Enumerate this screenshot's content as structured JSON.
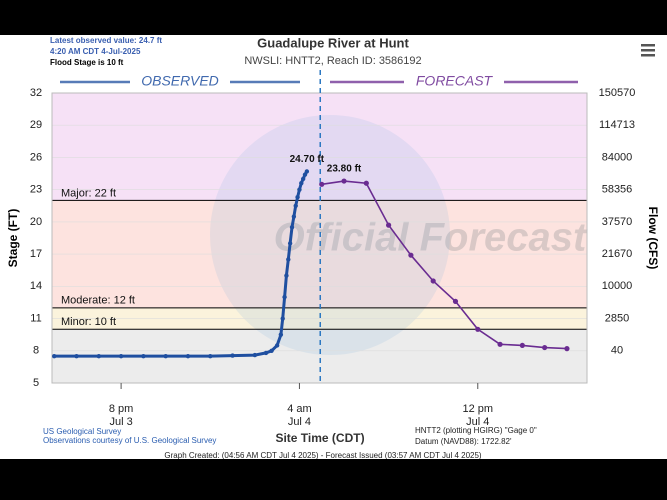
{
  "header": {
    "latest": "Latest observed value: 24.7 ft",
    "latest_time": "4:20 AM CDT 4-Jul-2025",
    "flood_stage": "Flood Stage is 10 ft"
  },
  "chart_data": {
    "type": "line",
    "title": "Guadalupe River at Hunt",
    "subtitle": "NWSLI: HNTT2, Reach ID: 3586192",
    "y_label": "Stage (FT)",
    "y2_label": "Flow (CFS)",
    "x_label": "Site Time (CDT)",
    "watermark": "Official Forecast",
    "xlim": [
      "Jul 3 16:54",
      "Jul 4 16:54"
    ],
    "xticks": [
      {
        "value": "Jul 3 20:00",
        "label": "8 pm",
        "date": "Jul 3"
      },
      {
        "value": "Jul 4 04:00",
        "label": "4 am",
        "date": "Jul 4"
      },
      {
        "value": "Jul 4 12:00",
        "label": "12 pm",
        "date": "Jul 4"
      }
    ],
    "ylim": [
      5,
      32
    ],
    "yticks": [
      5,
      8,
      11,
      14,
      17,
      20,
      23,
      26,
      29,
      32
    ],
    "y2ticks": [
      40,
      2850,
      10000,
      21670,
      37570,
      58356,
      84000,
      114713,
      150570
    ],
    "now": "Jul 4 04:56",
    "below_color": "#ececec",
    "flood_categories": [
      {
        "label": "Minor: 10 ft",
        "value": 10,
        "color": "#fbf3dc"
      },
      {
        "label": "Moderate: 12 ft",
        "value": 12,
        "color": "#fde3df"
      },
      {
        "label": "Major: 22 ft",
        "value": 22,
        "color": "#f6e1f6"
      }
    ],
    "series": [
      {
        "name": "OBSERVED",
        "color": "#1f4fa0",
        "x": [
          "Jul 3 17:00",
          "Jul 3 18:00",
          "Jul 3 19:00",
          "Jul 3 20:00",
          "Jul 3 21:00",
          "Jul 3 22:00",
          "Jul 3 23:00",
          "Jul 4 00:00",
          "Jul 4 01:00",
          "Jul 4 02:00",
          "Jul 4 02:30",
          "Jul 4 02:45",
          "Jul 4 03:00",
          "Jul 4 03:10",
          "Jul 4 03:15",
          "Jul 4 03:20",
          "Jul 4 03:25",
          "Jul 4 03:30",
          "Jul 4 03:35",
          "Jul 4 03:40",
          "Jul 4 03:45",
          "Jul 4 03:50",
          "Jul 4 03:55",
          "Jul 4 04:00",
          "Jul 4 04:05",
          "Jul 4 04:10",
          "Jul 4 04:15",
          "Jul 4 04:20"
        ],
        "values": [
          7.5,
          7.5,
          7.5,
          7.5,
          7.5,
          7.5,
          7.5,
          7.5,
          7.55,
          7.6,
          7.8,
          8.0,
          8.5,
          9.5,
          11,
          13,
          15,
          16.5,
          18,
          19.5,
          20.5,
          21.5,
          22.3,
          23,
          23.6,
          24,
          24.4,
          24.7
        ],
        "peak_label": "24.70 ft"
      },
      {
        "name": "FORECAST",
        "color": "#6a2c91",
        "x": [
          "Jul 4 05:00",
          "Jul 4 06:00",
          "Jul 4 07:00",
          "Jul 4 08:00",
          "Jul 4 09:00",
          "Jul 4 10:00",
          "Jul 4 11:00",
          "Jul 4 12:00",
          "Jul 4 13:00",
          "Jul 4 14:00",
          "Jul 4 15:00",
          "Jul 4 16:00"
        ],
        "values": [
          23.5,
          23.8,
          23.6,
          19.7,
          16.9,
          14.5,
          12.6,
          10.0,
          8.6,
          8.5,
          8.3,
          8.2
        ],
        "peak_label": "23.80 ft"
      }
    ]
  },
  "footer": {
    "source": "US Geological Survey",
    "courtesy": "Observations courtesy of U.S. Geological Survey",
    "gage": "HNTT2 (plotting HGIRG) \"Gage 0\"",
    "datum": "Datum (NAVD88): 1722.82'",
    "created": "Graph Created: (04:56 AM CDT Jul 4 2025) - Forecast Issued (03:57 AM CDT Jul 4 2025)"
  }
}
